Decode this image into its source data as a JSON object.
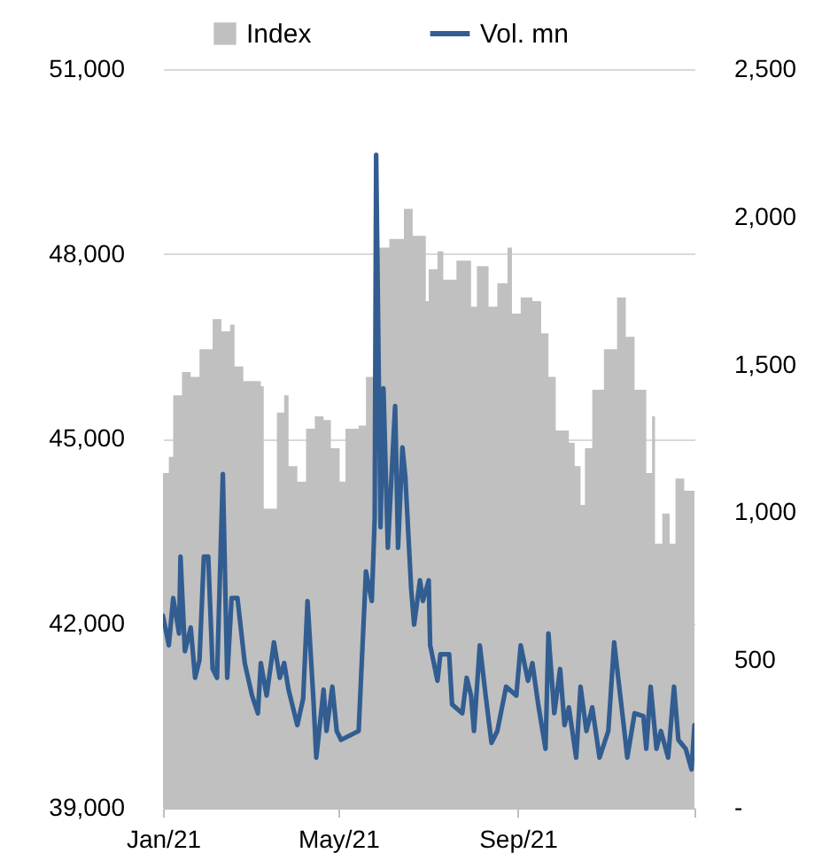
{
  "chart_data": {
    "type": "area",
    "xlim": [
      "2021-01-01",
      "2021-12-31"
    ],
    "xticks": [
      {
        "value": "2021-01-01",
        "label": "Jan/21"
      },
      {
        "value": "2021-05-01",
        "label": "May/21"
      },
      {
        "value": "2021-09-01",
        "label": "Sep/21"
      },
      {
        "value": "2021-12-31",
        "label": null
      }
    ],
    "ylim": [
      39000,
      51000
    ],
    "yticks": [
      {
        "value": 39000,
        "label": "39,000"
      },
      {
        "value": 42000,
        "label": "42,000"
      },
      {
        "value": 45000,
        "label": "45,000"
      },
      {
        "value": 48000,
        "label": "48,000"
      },
      {
        "value": 51000,
        "label": "51,000"
      }
    ],
    "y2lim": [
      0,
      2500
    ],
    "y2ticks": [
      {
        "value": 0,
        "label": "-"
      },
      {
        "value": 500,
        "label": "500"
      },
      {
        "value": 1000,
        "label": "1,000"
      },
      {
        "value": 1500,
        "label": "1,500"
      },
      {
        "value": 2000,
        "label": "2,000"
      },
      {
        "value": 2500,
        "label": "2,500"
      }
    ],
    "grid": "y",
    "legend": "top",
    "series": [
      {
        "name": "Index",
        "color": "#c0c0c0",
        "x": [
          "2021-01-01",
          "2021-01-05",
          "2021-01-08",
          "2021-01-14",
          "2021-01-20",
          "2021-01-26",
          "2021-02-04",
          "2021-02-10",
          "2021-02-16",
          "2021-02-19",
          "2021-02-25",
          "2021-03-09",
          "2021-03-11",
          "2021-03-16",
          "2021-03-20",
          "2021-03-25",
          "2021-03-28",
          "2021-04-03",
          "2021-04-09",
          "2021-04-15",
          "2021-04-21",
          "2021-04-26",
          "2021-05-02",
          "2021-05-06",
          "2021-05-15",
          "2021-05-20",
          "2021-05-26",
          "2021-06-05",
          "2021-06-15",
          "2021-06-21",
          "2021-06-30",
          "2021-07-02",
          "2021-07-08",
          "2021-07-12",
          "2021-07-21",
          "2021-07-31",
          "2021-08-04",
          "2021-08-12",
          "2021-08-18",
          "2021-08-25",
          "2021-08-28",
          "2021-09-03",
          "2021-09-11",
          "2021-09-17",
          "2021-09-22",
          "2021-09-27",
          "2021-10-06",
          "2021-10-10",
          "2021-10-14",
          "2021-10-17",
          "2021-10-22",
          "2021-10-30",
          "2021-11-08",
          "2021-11-14",
          "2021-11-20",
          "2021-11-28",
          "2021-12-02",
          "2021-12-04",
          "2021-12-09",
          "2021-12-14",
          "2021-12-18",
          "2021-12-24",
          "2021-12-31"
        ],
        "values": [
          44440,
          44700,
          45700,
          46080,
          46000,
          46450,
          46940,
          46740,
          46850,
          46170,
          45930,
          45850,
          43860,
          43860,
          45420,
          45700,
          44550,
          44300,
          45160,
          45360,
          45300,
          44840,
          44300,
          45160,
          45210,
          46000,
          48100,
          48240,
          48730,
          48290,
          47230,
          47750,
          48040,
          47580,
          47890,
          47140,
          47800,
          47140,
          47520,
          48100,
          47030,
          47290,
          47230,
          46710,
          46000,
          45130,
          44930,
          44550,
          43920,
          44840,
          45790,
          46450,
          47290,
          46650,
          45790,
          44440,
          45360,
          43290,
          43780,
          43290,
          44350,
          44150,
          44260
        ]
      },
      {
        "name": "Vol. mn",
        "type": "line",
        "axis": "y2",
        "color": "#325d91",
        "x": [
          "2021-01-01",
          "2021-01-05",
          "2021-01-08",
          "2021-01-12",
          "2021-01-13",
          "2021-01-16",
          "2021-01-20",
          "2021-01-23",
          "2021-01-26",
          "2021-01-29",
          "2021-02-01",
          "2021-02-04",
          "2021-02-07",
          "2021-02-11",
          "2021-02-14",
          "2021-02-17",
          "2021-02-21",
          "2021-02-26",
          "2021-03-03",
          "2021-03-07",
          "2021-03-09",
          "2021-03-13",
          "2021-03-18",
          "2021-03-22",
          "2021-03-25",
          "2021-03-28",
          "2021-04-03",
          "2021-04-07",
          "2021-04-10",
          "2021-04-14",
          "2021-04-16",
          "2021-04-21",
          "2021-04-23",
          "2021-04-27",
          "2021-04-30",
          "2021-05-03",
          "2021-05-15",
          "2021-05-20",
          "2021-05-24",
          "2021-05-26",
          "2021-05-27",
          "2021-05-30",
          "2021-06-01",
          "2021-06-04",
          "2021-06-09",
          "2021-06-11",
          "2021-06-14",
          "2021-06-16",
          "2021-06-20",
          "2021-06-22",
          "2021-06-26",
          "2021-06-28",
          "2021-07-02",
          "2021-07-03",
          "2021-07-08",
          "2021-07-10",
          "2021-07-16",
          "2021-07-18",
          "2021-07-25",
          "2021-07-28",
          "2021-07-31",
          "2021-08-02",
          "2021-08-06",
          "2021-08-10",
          "2021-08-14",
          "2021-08-18",
          "2021-08-24",
          "2021-08-31",
          "2021-09-03",
          "2021-09-08",
          "2021-09-11",
          "2021-09-15",
          "2021-09-20",
          "2021-09-22",
          "2021-09-26",
          "2021-09-30",
          "2021-10-03",
          "2021-10-06",
          "2021-10-11",
          "2021-10-14",
          "2021-10-18",
          "2021-10-22",
          "2021-10-27",
          "2021-11-02",
          "2021-11-06",
          "2021-11-09",
          "2021-11-13",
          "2021-11-15",
          "2021-11-20",
          "2021-11-26",
          "2021-11-28",
          "2021-12-01",
          "2021-12-05",
          "2021-12-08",
          "2021-12-13",
          "2021-12-17",
          "2021-12-20",
          "2021-12-25",
          "2021-12-29",
          "2021-12-31"
        ],
        "values": [
          650,
          550,
          710,
          590,
          850,
          530,
          610,
          440,
          500,
          850,
          850,
          470,
          440,
          1130,
          440,
          710,
          710,
          490,
          380,
          320,
          490,
          380,
          560,
          440,
          490,
          400,
          280,
          370,
          700,
          370,
          170,
          400,
          260,
          410,
          260,
          230,
          260,
          800,
          700,
          980,
          2210,
          950,
          1420,
          880,
          1360,
          880,
          1220,
          1120,
          740,
          620,
          770,
          700,
          770,
          550,
          430,
          520,
          520,
          350,
          320,
          440,
          380,
          260,
          550,
          380,
          220,
          260,
          410,
          380,
          550,
          430,
          490,
          350,
          200,
          590,
          320,
          470,
          280,
          340,
          170,
          410,
          260,
          340,
          170,
          260,
          560,
          430,
          260,
          170,
          320,
          310,
          200,
          410,
          200,
          260,
          170,
          410,
          230,
          200,
          130,
          280
        ]
      }
    ]
  }
}
